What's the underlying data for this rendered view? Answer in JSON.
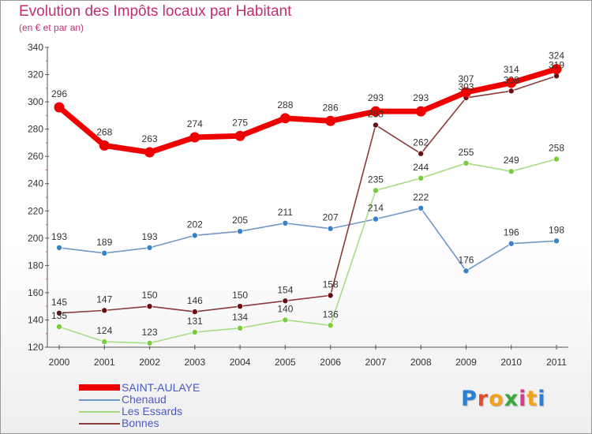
{
  "page": {
    "title": "Evolution des Impôts locaux par Habitant",
    "subtitle": "(en € et par an)"
  },
  "logo": {
    "letters": [
      "P",
      "r",
      "o",
      "x",
      "i",
      "t",
      "i"
    ],
    "colors": [
      "#2a7fd4",
      "#e64b2a",
      "#f2a21a",
      "#3aa93a",
      "#d93a8c",
      "#f2a21a",
      "#2a7fd4"
    ]
  },
  "chart_data": {
    "type": "line",
    "title": "Evolution des Impôts locaux par Habitant",
    "subtitle": "(en € et par an)",
    "x": [
      "2000",
      "2001",
      "2002",
      "2003",
      "2004",
      "2005",
      "2006",
      "2007",
      "2008",
      "2009",
      "2010",
      "2011"
    ],
    "ylim": [
      120,
      340
    ],
    "yticks": [
      120,
      140,
      160,
      180,
      200,
      220,
      240,
      260,
      280,
      300,
      320,
      340
    ],
    "grid": false,
    "legend_position": "bottom-left",
    "series": [
      {
        "name": "SAINT-AULAYE",
        "color": "#ee0000",
        "marker": "#ee0000",
        "values": [
          296,
          268,
          263,
          274,
          275,
          288,
          286,
          293,
          293,
          307,
          314,
          324
        ]
      },
      {
        "name": "Chenaud",
        "color": "#6f98c8",
        "marker": "#3a82c8",
        "values": [
          193,
          189,
          193,
          202,
          205,
          211,
          207,
          214,
          222,
          176,
          196,
          198
        ]
      },
      {
        "name": "Les Essards",
        "color": "#a8dc86",
        "marker": "#7acc3a",
        "values": [
          135,
          124,
          123,
          131,
          134,
          140,
          136,
          235,
          244,
          255,
          249,
          258
        ]
      },
      {
        "name": "Bonnes",
        "color": "#8a3a3a",
        "marker": "#6a1010",
        "values": [
          145,
          147,
          150,
          146,
          150,
          154,
          158,
          283,
          262,
          303,
          308,
          319
        ]
      }
    ]
  }
}
